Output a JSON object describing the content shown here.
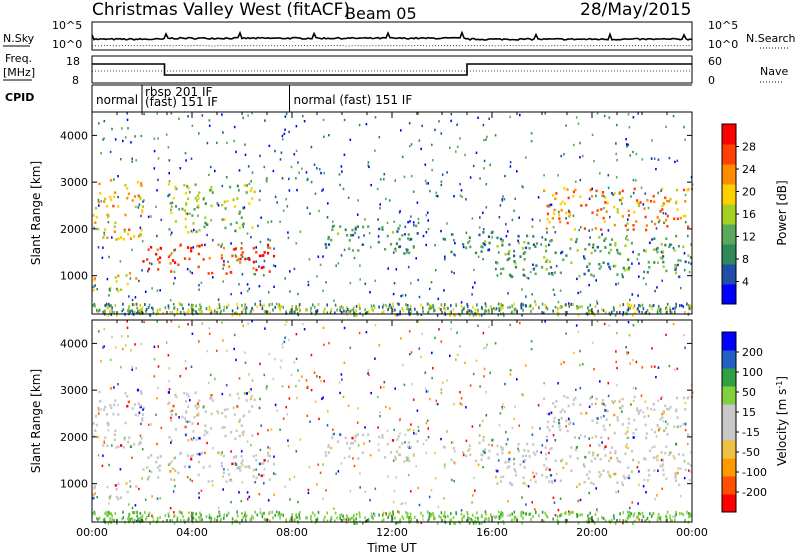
{
  "header": {
    "title": "Christmas Valley West (fitACF)",
    "beam": "Beam 05",
    "date": "28/May/2015"
  },
  "summary_panels": {
    "nsky_label": "N.Sky",
    "nsky_ticks": [
      "10^5",
      "10^0"
    ],
    "nsearch_label": "N.Search",
    "freq_label_line1": "Freq.",
    "freq_label_line2": "[MHz]",
    "freq_ticks": [
      "18",
      "8"
    ],
    "nave_label": "Nave",
    "nave_ticks": [
      "60",
      "0"
    ],
    "cpid_label": "CPID",
    "cpid_segments": [
      {
        "start_hr": 0.0,
        "end_hr": 2.0,
        "label": "normal"
      },
      {
        "start_hr": 2.0,
        "end_hr": 7.9,
        "label": "rbsp 201 IF",
        "label2": "(fast) 151 IF"
      },
      {
        "start_hr": 7.9,
        "end_hr": 24.0,
        "label": "normal (fast) 151 IF"
      }
    ]
  },
  "colors": {
    "power_scale": [
      "#0000ff",
      "#1f4fa8",
      "#2e8b57",
      "#5aa85a",
      "#a8d020",
      "#ffd000",
      "#ff8c00",
      "#ff4000",
      "#ff0000"
    ],
    "velocity_scale": [
      "#ff0000",
      "#ff5000",
      "#ff9900",
      "#f0c040",
      "#c8c8c8",
      "#c8c8c8",
      "#80d040",
      "#30a040",
      "#2060c0",
      "#0000ff"
    ]
  },
  "chart_data": [
    {
      "type": "heatmap",
      "name": "power",
      "xlabel": "",
      "ylabel": "Slant Range [km]",
      "xlim": [
        0,
        24
      ],
      "ylim": [
        180,
        4500
      ],
      "yticks": [
        "4000",
        "3000",
        "2000",
        "1000"
      ],
      "colorbar_label": "Power [dB]",
      "colorbar_ticks": [
        "28",
        "24",
        "20",
        "16",
        "12",
        "8",
        "4"
      ],
      "colorbar_range": [
        0,
        30
      ],
      "echo_regions": [
        {
          "t": [
            0.0,
            2.0
          ],
          "r": [
            1800,
            3100
          ],
          "level": 20
        },
        {
          "t": [
            0.0,
            1.8
          ],
          "r": [
            700,
            1100
          ],
          "level": 18
        },
        {
          "t": [
            2.0,
            7.3
          ],
          "r": [
            1050,
            1700
          ],
          "level": 28
        },
        {
          "t": [
            3.0,
            6.5
          ],
          "r": [
            1950,
            3000
          ],
          "level": 14
        },
        {
          "t": [
            9.0,
            13.0
          ],
          "r": [
            1500,
            2100
          ],
          "level": 8
        },
        {
          "t": [
            14.0,
            16.0
          ],
          "r": [
            1500,
            2000
          ],
          "level": 8
        },
        {
          "t": [
            16.0,
            24.0
          ],
          "r": [
            1000,
            1900
          ],
          "level": 10
        },
        {
          "t": [
            18.0,
            24.0
          ],
          "r": [
            2000,
            2900
          ],
          "level": 22
        }
      ]
    },
    {
      "type": "heatmap",
      "name": "velocity",
      "xlabel": "Time UT",
      "ylabel": "Slant Range [km]",
      "xlim": [
        0,
        24
      ],
      "ylim": [
        180,
        4500
      ],
      "xticks": [
        "00:00",
        "04:00",
        "08:00",
        "12:00",
        "16:00",
        "20:00",
        "00:00"
      ],
      "yticks": [
        "4000",
        "3000",
        "2000",
        "1000"
      ],
      "colorbar_label": "Velocity [m s-1]",
      "colorbar_ticks": [
        "200",
        "100",
        "50",
        "15",
        "-15",
        "-50",
        "-100",
        "-200"
      ],
      "colorbar_range": [
        -250,
        250
      ]
    }
  ]
}
